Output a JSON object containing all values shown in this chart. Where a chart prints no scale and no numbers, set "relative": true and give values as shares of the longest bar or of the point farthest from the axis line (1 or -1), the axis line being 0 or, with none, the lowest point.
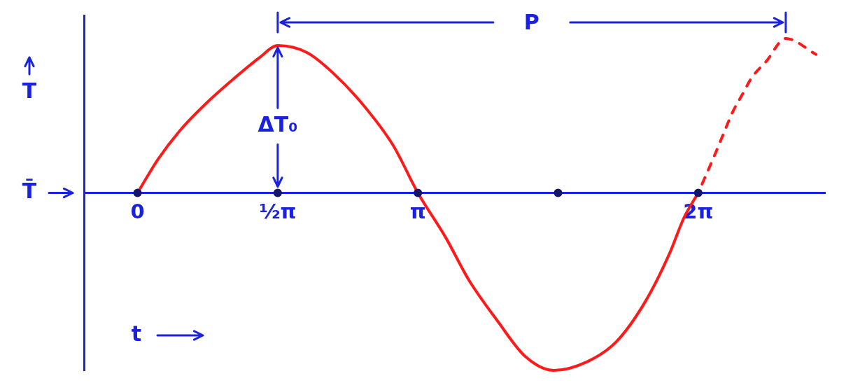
{
  "chart_data": {
    "type": "line",
    "xlabel": "t",
    "ylabel": "T",
    "relative": true,
    "xlim": [
      -0.6,
      7.7
    ],
    "xticks": [
      0,
      {
        "value": 1.57,
        "label": "½π"
      },
      {
        "value": 3.14,
        "label": "π"
      },
      {
        "value": 6.28,
        "label": "2π"
      }
    ],
    "annotations": [
      "P",
      "ΔT₀",
      "T̄"
    ],
    "series": [
      {
        "color": "#ff1a1a",
        "line_style": "solid",
        "x": [
          0,
          0.23,
          0.49,
          0.78,
          1.07,
          1.36,
          1.57,
          1.9,
          2.18,
          2.52,
          2.86,
          3.14,
          3.45,
          3.71,
          4.03,
          4.34,
          4.66,
          5.04,
          5.36,
          5.69,
          5.96,
          6.12,
          6.28
        ],
        "values": [
          0,
          0.19,
          0.36,
          0.51,
          0.64,
          0.76,
          0.83,
          0.79,
          0.68,
          0.5,
          0.27,
          0,
          -0.25,
          -0.49,
          -0.72,
          -0.92,
          -1,
          -0.95,
          -0.84,
          -0.61,
          -0.34,
          -0.14,
          0
        ]
      },
      {
        "color": "#ff1a1a",
        "line_style": "dashed",
        "x": [
          6.28,
          6.47,
          6.56,
          6.67,
          6.78,
          6.88,
          7.04,
          7.26,
          7.6
        ],
        "values": [
          0,
          0.22,
          0.33,
          0.46,
          0.56,
          0.65,
          0.74,
          0.87,
          0.78
        ]
      },
      {
        "type": "scatter",
        "color": "#15156b",
        "marker": "circle",
        "x": [
          0,
          1.57,
          3.14,
          4.71,
          6.28
        ],
        "values": [
          0,
          0,
          0,
          0,
          0
        ]
      }
    ]
  }
}
